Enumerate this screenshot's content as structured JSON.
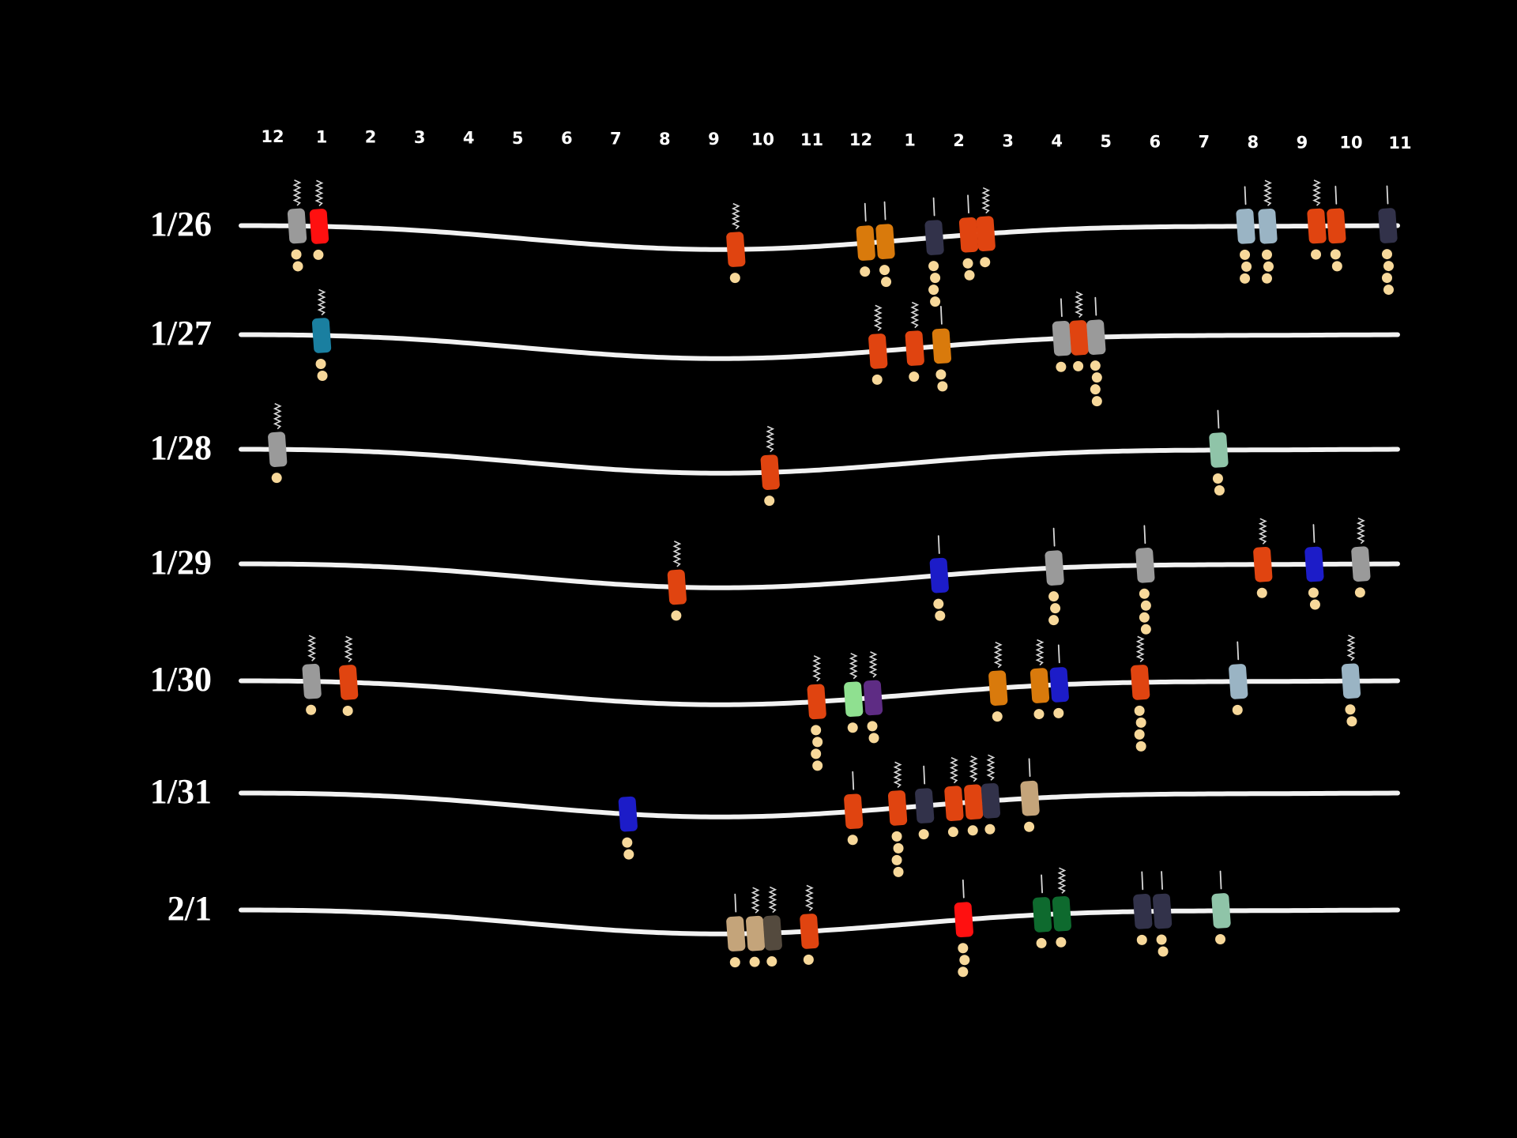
{
  "hour_labels": [
    "12",
    "1",
    "2",
    "3",
    "4",
    "5",
    "6",
    "7",
    "8",
    "9",
    "10",
    "11",
    "12",
    "1",
    "2",
    "3",
    "4",
    "5",
    "6",
    "7",
    "8",
    "9",
    "10",
    "11"
  ],
  "days": [
    {
      "date": "1/26",
      "events": [
        {
          "hour": 0.5,
          "color": "#9a9a9a",
          "top": "squiggle",
          "dots": 2
        },
        {
          "hour": 0.95,
          "color": "#ff1010",
          "top": "squiggle",
          "dots": 1
        },
        {
          "hour": 9.45,
          "color": "#e04410",
          "top": "squiggle",
          "dots": 1
        },
        {
          "hour": 12.1,
          "color": "#d97a0c",
          "top": "line",
          "dots": 1
        },
        {
          "hour": 12.5,
          "color": "#d97a0c",
          "top": "line",
          "dots": 2
        },
        {
          "hour": 13.5,
          "color": "#32324a",
          "top": "line",
          "dots": 4
        },
        {
          "hour": 14.2,
          "color": "#e04410",
          "top": "line",
          "dots": 2
        },
        {
          "hour": 14.55,
          "color": "#e04410",
          "top": "squiggle",
          "dots": 1
        },
        {
          "hour": 19.85,
          "color": "#9ab4c4",
          "top": "line",
          "dots": 3
        },
        {
          "hour": 20.3,
          "color": "#9ab4c4",
          "top": "squiggle",
          "dots": 3
        },
        {
          "hour": 21.3,
          "color": "#e04410",
          "top": "squiggle",
          "dots": 1
        },
        {
          "hour": 21.7,
          "color": "#e04410",
          "top": "line",
          "dots": 2
        },
        {
          "hour": 22.75,
          "color": "#32324a",
          "top": "line",
          "dots": 4
        }
      ]
    },
    {
      "date": "1/27",
      "events": [
        {
          "hour": 1.0,
          "color": "#1a7fa0",
          "top": "squiggle",
          "dots": 2
        },
        {
          "hour": 12.35,
          "color": "#e04410",
          "top": "squiggle",
          "dots": 1
        },
        {
          "hour": 13.1,
          "color": "#e04410",
          "top": "squiggle",
          "dots": 1
        },
        {
          "hour": 13.65,
          "color": "#d97a0c",
          "top": "line",
          "dots": 2
        },
        {
          "hour": 16.1,
          "color": "#9a9a9a",
          "top": "line",
          "dots": 1
        },
        {
          "hour": 16.45,
          "color": "#e04410",
          "top": "squiggle",
          "dots": 1
        },
        {
          "hour": 16.8,
          "color": "#9a9a9a",
          "top": "line",
          "dots": 4
        }
      ]
    },
    {
      "date": "1/28",
      "events": [
        {
          "hour": 0.1,
          "color": "#9a9a9a",
          "top": "squiggle",
          "dots": 1
        },
        {
          "hour": 10.15,
          "color": "#e04410",
          "top": "squiggle",
          "dots": 1
        },
        {
          "hour": 19.3,
          "color": "#8fc4a8",
          "top": "line",
          "dots": 2
        }
      ]
    },
    {
      "date": "1/29",
      "events": [
        {
          "hour": 8.25,
          "color": "#e04410",
          "top": "squiggle",
          "dots": 1
        },
        {
          "hour": 13.6,
          "color": "#1c1cc8",
          "top": "line",
          "dots": 2
        },
        {
          "hour": 15.95,
          "color": "#9a9a9a",
          "top": "line",
          "dots": 3
        },
        {
          "hour": 17.8,
          "color": "#9a9a9a",
          "top": "line",
          "dots": 4
        },
        {
          "hour": 20.2,
          "color": "#e04410",
          "top": "squiggle",
          "dots": 1
        },
        {
          "hour": 21.25,
          "color": "#1c1cc8",
          "top": "line",
          "dots": 2
        },
        {
          "hour": 22.2,
          "color": "#9a9a9a",
          "top": "squiggle",
          "dots": 1
        }
      ]
    },
    {
      "date": "1/30",
      "events": [
        {
          "hour": 0.8,
          "color": "#9a9a9a",
          "top": "squiggle",
          "dots": 1
        },
        {
          "hour": 1.55,
          "color": "#e04410",
          "top": "squiggle",
          "dots": 1
        },
        {
          "hour": 11.1,
          "color": "#e04410",
          "top": "squiggle",
          "dots": 4
        },
        {
          "hour": 11.85,
          "color": "#8fe090",
          "top": "squiggle",
          "dots": 1
        },
        {
          "hour": 12.25,
          "color": "#5e2c84",
          "top": "squiggle",
          "dots": 2
        },
        {
          "hour": 14.8,
          "color": "#d97a0c",
          "top": "squiggle",
          "dots": 1
        },
        {
          "hour": 15.65,
          "color": "#d97a0c",
          "top": "squiggle",
          "dots": 1
        },
        {
          "hour": 16.05,
          "color": "#1c1cc8",
          "top": "line",
          "dots": 1
        },
        {
          "hour": 17.7,
          "color": "#e04410",
          "top": "squiggle",
          "dots": 4
        },
        {
          "hour": 19.7,
          "color": "#9ab4c4",
          "top": "line",
          "dots": 1
        },
        {
          "hour": 22.0,
          "color": "#9ab4c4",
          "top": "squiggle",
          "dots": 2
        }
      ]
    },
    {
      "date": "1/31",
      "events": [
        {
          "hour": 7.25,
          "color": "#1c1cc8",
          "top": "none",
          "dots": 2
        },
        {
          "hour": 11.85,
          "color": "#e04410",
          "top": "line",
          "dots": 1
        },
        {
          "hour": 12.75,
          "color": "#e04410",
          "top": "squiggle",
          "dots": 4
        },
        {
          "hour": 13.3,
          "color": "#32324a",
          "top": "line",
          "dots": 1
        },
        {
          "hour": 13.9,
          "color": "#e04410",
          "top": "squiggle",
          "dots": 1
        },
        {
          "hour": 14.3,
          "color": "#e04410",
          "top": "squiggle",
          "dots": 1
        },
        {
          "hour": 14.65,
          "color": "#32324a",
          "top": "squiggle",
          "dots": 1
        },
        {
          "hour": 15.45,
          "color": "#c4a47a",
          "top": "line",
          "dots": 1
        }
      ]
    },
    {
      "date": "2/1",
      "events": [
        {
          "hour": 9.45,
          "color": "#c4a47a",
          "top": "line",
          "dots": 1
        },
        {
          "hour": 9.85,
          "color": "#c4a47a",
          "top": "squiggle",
          "dots": 1
        },
        {
          "hour": 10.2,
          "color": "#544a3e",
          "top": "squiggle",
          "dots": 1
        },
        {
          "hour": 10.95,
          "color": "#e04410",
          "top": "squiggle",
          "dots": 1
        },
        {
          "hour": 14.1,
          "color": "#ff1010",
          "top": "line",
          "dots": 3
        },
        {
          "hour": 15.7,
          "color": "#0e6a2e",
          "top": "line",
          "dots": 1
        },
        {
          "hour": 16.1,
          "color": "#0e6a2e",
          "top": "squiggle",
          "dots": 1
        },
        {
          "hour": 17.75,
          "color": "#32324a",
          "top": "line",
          "dots": 1
        },
        {
          "hour": 18.15,
          "color": "#32324a",
          "top": "line",
          "dots": 2
        },
        {
          "hour": 19.35,
          "color": "#8fc4a8",
          "top": "line",
          "dots": 1
        }
      ]
    }
  ]
}
